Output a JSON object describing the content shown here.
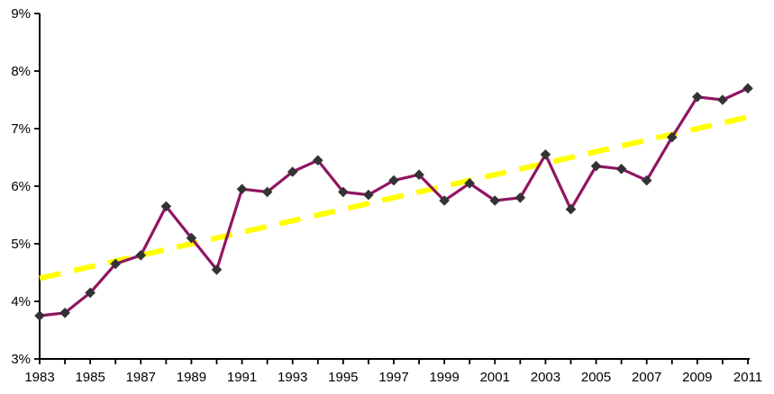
{
  "page": {
    "background_color": "#ffffff"
  },
  "chart_data": {
    "type": "line",
    "title": "",
    "xlabel": "",
    "ylabel": "",
    "grid": false,
    "legend": "none",
    "axis_color": "#000000",
    "text_color": "#000000",
    "ylim": [
      3,
      9
    ],
    "ytick_values": [
      3,
      4,
      5,
      6,
      7,
      8,
      9
    ],
    "ytick_labels": [
      "3%",
      "4%",
      "5%",
      "6%",
      "7%",
      "8%",
      "9%"
    ],
    "x": [
      1983,
      1984,
      1985,
      1986,
      1987,
      1988,
      1989,
      1990,
      1991,
      1992,
      1993,
      1994,
      1995,
      1996,
      1997,
      1998,
      1999,
      2000,
      2001,
      2002,
      2003,
      2004,
      2005,
      2006,
      2007,
      2008,
      2009,
      2010,
      2011
    ],
    "xtick_label_values": [
      1983,
      1985,
      1987,
      1989,
      1991,
      1993,
      1995,
      1997,
      1999,
      2001,
      2003,
      2005,
      2007,
      2009,
      2011
    ],
    "series": [
      {
        "name": "annual-percentage",
        "color": "#901562",
        "line_width": 3.2,
        "marker": "diamond",
        "marker_color": "#333333",
        "marker_size": 11.6,
        "values": [
          3.75,
          3.8,
          4.15,
          4.65,
          4.8,
          5.65,
          5.1,
          4.55,
          5.95,
          5.9,
          6.25,
          6.45,
          5.9,
          5.85,
          6.1,
          6.2,
          5.75,
          6.05,
          5.75,
          5.8,
          6.55,
          5.6,
          6.35,
          6.3,
          6.1,
          6.85,
          7.55,
          7.5,
          7.7
        ]
      },
      {
        "name": "linear-trend",
        "color": "#FFFF00",
        "style": "dashed",
        "line_width": 6,
        "dash": [
          24,
          15
        ],
        "start": 4.4,
        "end": 7.2
      }
    ]
  }
}
